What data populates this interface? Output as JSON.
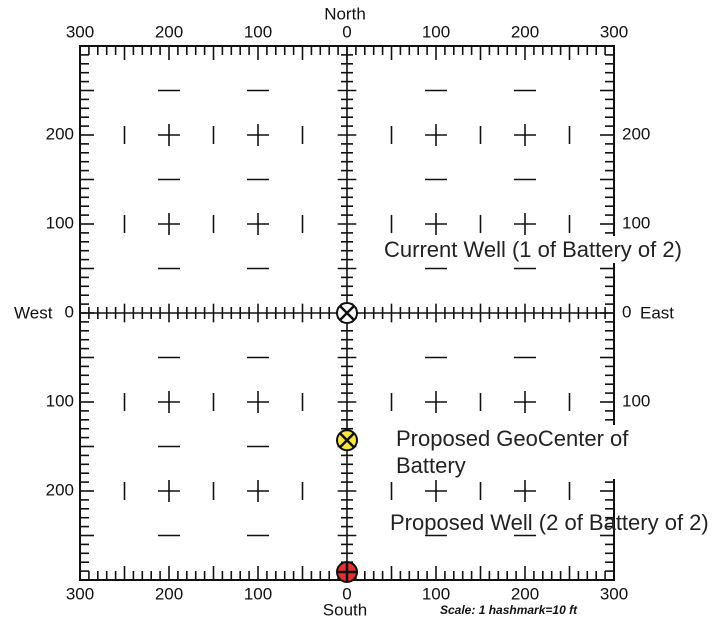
{
  "compass": {
    "north": "North",
    "south": "South",
    "west": "West",
    "east": "East"
  },
  "top_scale": [
    "300",
    "200",
    "100",
    "0",
    "100",
    "200",
    "300"
  ],
  "bottom_scale": [
    "300",
    "200",
    "100",
    "0",
    "100",
    "200",
    "300"
  ],
  "left_scale": [
    "200",
    "100",
    "0",
    "100",
    "200"
  ],
  "right_scale": [
    "200",
    "100",
    "0",
    "100"
  ],
  "annotations": {
    "current_well": "Current Well (1 of Battery of 2)",
    "geocenter": "Proposed GeoCenter of Battery",
    "proposed_well": "Proposed Well (2 of Battery of 2)"
  },
  "scale_note": "Scale:  1 hashmark=10 ft"
}
